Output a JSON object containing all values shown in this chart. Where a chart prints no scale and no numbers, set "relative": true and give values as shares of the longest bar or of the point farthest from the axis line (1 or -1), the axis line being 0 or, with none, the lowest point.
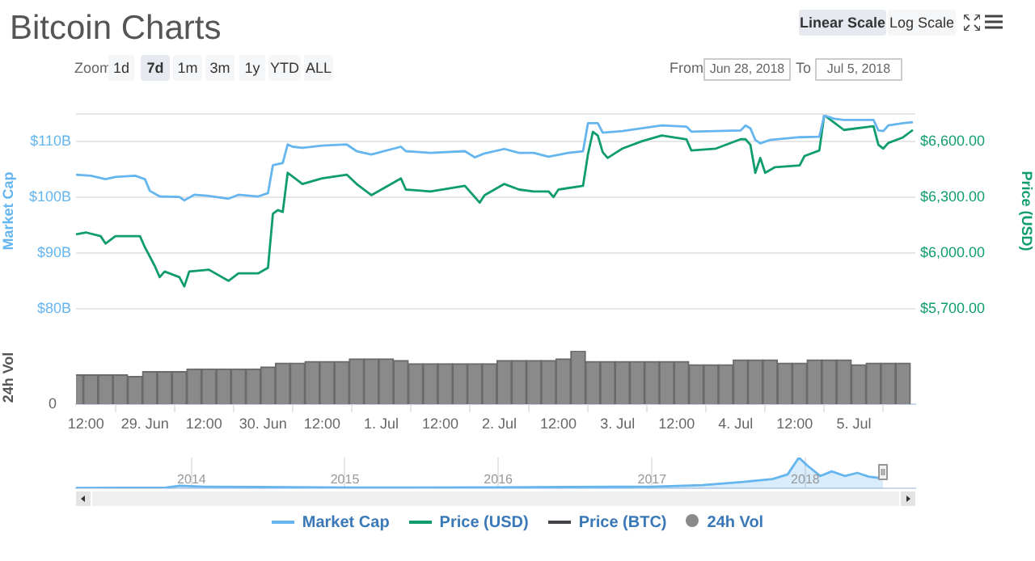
{
  "chart_data": [
    {
      "type": "line",
      "title": "Bitcoin Charts",
      "ylabel": "Market Cap",
      "y2label": "Price (USD)",
      "xlim": [
        "2018-06-28T10:00",
        "2018-07-05T12:30"
      ],
      "ylim": [
        80,
        115
      ],
      "yticks": [
        {
          "value": 80,
          "label": "$80B"
        },
        {
          "value": 90,
          "label": "$90B"
        },
        {
          "value": 100,
          "label": "$100B"
        },
        {
          "value": 110,
          "label": "$110B"
        }
      ],
      "y2lim": [
        5700,
        6750
      ],
      "y2ticks": [
        {
          "value": 5700,
          "label": "$5,700.00"
        },
        {
          "value": 6000,
          "label": "$6,000.00"
        },
        {
          "value": 6300,
          "label": "$6,300.00"
        },
        {
          "value": 6600,
          "label": "$6,600.00"
        }
      ],
      "grid": "y",
      "legend": "bottom",
      "tick_labels": "y",
      "annotations": [
        "Linear Scale",
        "Log Scale",
        "Zoom",
        "1d",
        "7d",
        "1m",
        "3m",
        "1y",
        "YTD",
        "ALL",
        "From",
        "Jun 28, 2018",
        "To",
        "Jul 5, 2018"
      ],
      "series": [
        {
          "name": "Market Cap",
          "color": "#65b5ef",
          "x": [
            "2018-06-28T10:00",
            "2018-06-28T13:00",
            "2018-06-28T16:00",
            "2018-06-28T18:00",
            "2018-06-28T22:00",
            "2018-06-29T00:00",
            "2018-06-29T01:00",
            "2018-06-29T03:00",
            "2018-06-29T07:00",
            "2018-06-29T08:00",
            "2018-06-29T10:00",
            "2018-06-29T13:00",
            "2018-06-29T17:00",
            "2018-06-29T19:00",
            "2018-06-29T23:00",
            "2018-06-30T01:00",
            "2018-06-30T02:00",
            "2018-06-30T04:00",
            "2018-06-30T05:00",
            "2018-06-30T06:00",
            "2018-06-30T08:00",
            "2018-06-30T12:00",
            "2018-06-30T17:00",
            "2018-06-30T19:00",
            "2018-06-30T22:00",
            "2018-07-01T04:00",
            "2018-07-01T05:00",
            "2018-07-01T10:00",
            "2018-07-01T17:00",
            "2018-07-01T19:00",
            "2018-07-01T21:00",
            "2018-07-02T01:00",
            "2018-07-02T04:00",
            "2018-07-02T07:00",
            "2018-07-02T10:00",
            "2018-07-02T14:00",
            "2018-07-02T17:00",
            "2018-07-02T18:00",
            "2018-07-02T20:00",
            "2018-07-02T21:00",
            "2018-07-03T01:00",
            "2018-07-03T05:00",
            "2018-07-03T09:00",
            "2018-07-03T14:00",
            "2018-07-03T15:00",
            "2018-07-03T20:00",
            "2018-07-04T01:00",
            "2018-07-04T02:00",
            "2018-07-04T03:00",
            "2018-07-04T04:00",
            "2018-07-04T05:00",
            "2018-07-04T07:00",
            "2018-07-04T13:00",
            "2018-07-04T17:00",
            "2018-07-04T18:00",
            "2018-07-04T20:00",
            "2018-07-04T22:00",
            "2018-07-05T04:00",
            "2018-07-05T05:00",
            "2018-07-05T06:00",
            "2018-07-05T07:00",
            "2018-07-05T10:00",
            "2018-07-05T12:00"
          ],
          "values": [
            104.0,
            103.8,
            103.2,
            103.6,
            103.8,
            103.2,
            101.1,
            100.1,
            100.0,
            99.4,
            100.4,
            100.2,
            99.7,
            100.4,
            100.1,
            100.7,
            105.7,
            106.1,
            109.4,
            109.0,
            108.8,
            109.2,
            109.4,
            108.2,
            107.6,
            109.0,
            108.2,
            107.9,
            108.2,
            107.1,
            107.8,
            108.6,
            107.9,
            107.9,
            107.2,
            107.9,
            108.2,
            113.2,
            113.2,
            111.5,
            111.8,
            112.3,
            112.8,
            112.6,
            111.7,
            111.8,
            111.9,
            112.8,
            112.3,
            110.2,
            109.6,
            110.2,
            110.7,
            110.8,
            114.6,
            114.0,
            113.8,
            113.8,
            111.9,
            111.8,
            112.8,
            113.2,
            113.4
          ]
        },
        {
          "name": "Price (USD)",
          "color": "#0f9d6c",
          "axis": "y2",
          "x": [
            "2018-06-28T10:00",
            "2018-06-28T12:00",
            "2018-06-28T15:00",
            "2018-06-28T16:00",
            "2018-06-28T18:00",
            "2018-06-28T23:00",
            "2018-06-29T00:00",
            "2018-06-29T02:00",
            "2018-06-29T03:00",
            "2018-06-29T04:00",
            "2018-06-29T07:00",
            "2018-06-29T08:00",
            "2018-06-29T09:00",
            "2018-06-29T13:00",
            "2018-06-29T17:00",
            "2018-06-29T19:00",
            "2018-06-29T23:00",
            "2018-06-30T01:00",
            "2018-06-30T02:00",
            "2018-06-30T03:00",
            "2018-06-30T04:00",
            "2018-06-30T05:00",
            "2018-06-30T06:00",
            "2018-06-30T08:00",
            "2018-06-30T12:00",
            "2018-06-30T17:00",
            "2018-06-30T19:00",
            "2018-06-30T22:00",
            "2018-07-01T04:00",
            "2018-07-01T05:00",
            "2018-07-01T10:00",
            "2018-07-01T17:00",
            "2018-07-01T19:00",
            "2018-07-01T20:00",
            "2018-07-01T21:00",
            "2018-07-02T01:00",
            "2018-07-02T04:00",
            "2018-07-02T07:00",
            "2018-07-02T10:00",
            "2018-07-02T11:00",
            "2018-07-02T12:00",
            "2018-07-02T17:00",
            "2018-07-02T18:00",
            "2018-07-02T19:00",
            "2018-07-02T20:00",
            "2018-07-02T21:00",
            "2018-07-02T22:00",
            "2018-07-03T01:00",
            "2018-07-03T05:00",
            "2018-07-03T09:00",
            "2018-07-03T14:00",
            "2018-07-03T15:00",
            "2018-07-03T20:00",
            "2018-07-04T01:00",
            "2018-07-04T02:00",
            "2018-07-04T03:00",
            "2018-07-04T04:00",
            "2018-07-04T05:00",
            "2018-07-04T06:00",
            "2018-07-04T08:00",
            "2018-07-04T13:00",
            "2018-07-04T14:00",
            "2018-07-04T17:00",
            "2018-07-04T18:00",
            "2018-07-04T20:00",
            "2018-07-04T22:00",
            "2018-07-05T04:00",
            "2018-07-05T05:00",
            "2018-07-05T06:00",
            "2018-07-05T07:00",
            "2018-07-05T10:00",
            "2018-07-05T12:00"
          ],
          "values": [
            6100,
            6110,
            6090,
            6050,
            6090,
            6090,
            6030,
            5930,
            5870,
            5900,
            5870,
            5820,
            5900,
            5910,
            5850,
            5890,
            5890,
            5920,
            6210,
            6230,
            6220,
            6430,
            6410,
            6370,
            6400,
            6420,
            6370,
            6310,
            6400,
            6340,
            6330,
            6360,
            6300,
            6270,
            6310,
            6370,
            6340,
            6330,
            6330,
            6300,
            6340,
            6360,
            6530,
            6650,
            6630,
            6540,
            6510,
            6560,
            6600,
            6630,
            6610,
            6550,
            6560,
            6610,
            6610,
            6580,
            6430,
            6510,
            6430,
            6460,
            6470,
            6520,
            6550,
            6740,
            6700,
            6660,
            6680,
            6580,
            6560,
            6590,
            6620,
            6660
          ]
        },
        {
          "name": "Price (BTC)",
          "color": "#434348"
        }
      ]
    },
    {
      "type": "bar",
      "ylabel": "24h Vol",
      "relative": true,
      "xlim": [
        "2018-06-28T10:00",
        "2018-07-05T12:30"
      ],
      "xticks": [
        {
          "value": "2018-06-28T12:00",
          "label": "12:00"
        },
        {
          "value": "2018-06-29T00:00",
          "label": "29. Jun"
        },
        {
          "value": "2018-06-29T12:00",
          "label": "12:00"
        },
        {
          "value": "2018-06-30T00:00",
          "label": "30. Jun"
        },
        {
          "value": "2018-06-30T12:00",
          "label": "12:00"
        },
        {
          "value": "2018-07-01T00:00",
          "label": "1. Jul"
        },
        {
          "value": "2018-07-01T12:00",
          "label": "12:00"
        },
        {
          "value": "2018-07-02T00:00",
          "label": "2. Jul"
        },
        {
          "value": "2018-07-02T12:00",
          "label": "12:00"
        },
        {
          "value": "2018-07-03T00:00",
          "label": "3. Jul"
        },
        {
          "value": "2018-07-03T12:00",
          "label": "12:00"
        },
        {
          "value": "2018-07-04T00:00",
          "label": "4. Jul"
        },
        {
          "value": "2018-07-04T12:00",
          "label": "12:00"
        },
        {
          "value": "2018-07-05T00:00",
          "label": "5. Jul"
        }
      ],
      "tick_labels": "x",
      "legend": "bottom",
      "annotations": [
        "0"
      ],
      "x": [
        "2018-06-28T10:00",
        "2018-06-28T13:00",
        "2018-06-28T16:00",
        "2018-06-28T19:00",
        "2018-06-28T22:00",
        "2018-06-29T01:00",
        "2018-06-29T04:00",
        "2018-06-29T07:00",
        "2018-06-29T10:00",
        "2018-06-29T13:00",
        "2018-06-29T16:00",
        "2018-06-29T19:00",
        "2018-06-29T22:00",
        "2018-06-30T01:00",
        "2018-06-30T04:00",
        "2018-06-30T07:00",
        "2018-06-30T10:00",
        "2018-06-30T13:00",
        "2018-06-30T16:00",
        "2018-06-30T19:00",
        "2018-06-30T22:00",
        "2018-07-01T01:00",
        "2018-07-01T04:00",
        "2018-07-01T07:00",
        "2018-07-01T10:00",
        "2018-07-01T13:00",
        "2018-07-01T16:00",
        "2018-07-01T19:00",
        "2018-07-01T22:00",
        "2018-07-02T01:00",
        "2018-07-02T04:00",
        "2018-07-02T07:00",
        "2018-07-02T10:00",
        "2018-07-02T13:00",
        "2018-07-02T16:00",
        "2018-07-02T19:00",
        "2018-07-02T22:00",
        "2018-07-03T01:00",
        "2018-07-03T04:00",
        "2018-07-03T07:00",
        "2018-07-03T10:00",
        "2018-07-03T13:00",
        "2018-07-03T16:00",
        "2018-07-03T19:00",
        "2018-07-03T22:00",
        "2018-07-04T01:00",
        "2018-07-04T04:00",
        "2018-07-04T07:00",
        "2018-07-04T10:00",
        "2018-07-04T13:00",
        "2018-07-04T16:00",
        "2018-07-04T19:00",
        "2018-07-04T22:00",
        "2018-07-05T01:00",
        "2018-07-05T04:00",
        "2018-07-05T07:00",
        "2018-07-05T10:00"
      ],
      "series": [
        {
          "name": "24h Vol",
          "color": "#8a8a8a",
          "values": [
            0.55,
            0.55,
            0.55,
            0.55,
            0.52,
            0.61,
            0.61,
            0.61,
            0.66,
            0.66,
            0.66,
            0.66,
            0.66,
            0.7,
            0.77,
            0.77,
            0.8,
            0.8,
            0.8,
            0.85,
            0.85,
            0.85,
            0.82,
            0.76,
            0.76,
            0.76,
            0.76,
            0.76,
            0.76,
            0.82,
            0.82,
            0.82,
            0.82,
            0.85,
            1.0,
            0.8,
            0.8,
            0.8,
            0.8,
            0.8,
            0.8,
            0.8,
            0.74,
            0.74,
            0.74,
            0.83,
            0.83,
            0.83,
            0.77,
            0.77,
            0.83,
            0.83,
            0.83,
            0.74,
            0.77,
            0.77,
            0.77
          ]
        }
      ]
    },
    {
      "type": "area",
      "relative": true,
      "xlim": [
        "2013-04-01",
        "2018-09-20"
      ],
      "xticks": [
        "2014",
        "2015",
        "2016",
        "2017",
        "2018"
      ],
      "tick_labels": "x",
      "grid": "x",
      "x": [
        "2013-04-01",
        "2013-11-01",
        "2013-12-05",
        "2014-02-01",
        "2014-06-01",
        "2015-01-15",
        "2015-06-01",
        "2016-01-01",
        "2016-06-15",
        "2017-01-01",
        "2017-05-01",
        "2017-08-01",
        "2017-10-15",
        "2017-11-20",
        "2017-12-17",
        "2018-01-05",
        "2018-02-06",
        "2018-03-05",
        "2018-04-05",
        "2018-05-05",
        "2018-06-01",
        "2018-06-28",
        "2018-07-05"
      ],
      "series": [
        {
          "color": "#65b5ef",
          "values": [
            0.01,
            0.02,
            0.08,
            0.05,
            0.04,
            0.02,
            0.02,
            0.03,
            0.04,
            0.05,
            0.1,
            0.2,
            0.3,
            0.45,
            1.0,
            0.75,
            0.4,
            0.55,
            0.4,
            0.5,
            0.38,
            0.33,
            0.35
          ]
        }
      ]
    }
  ]
}
